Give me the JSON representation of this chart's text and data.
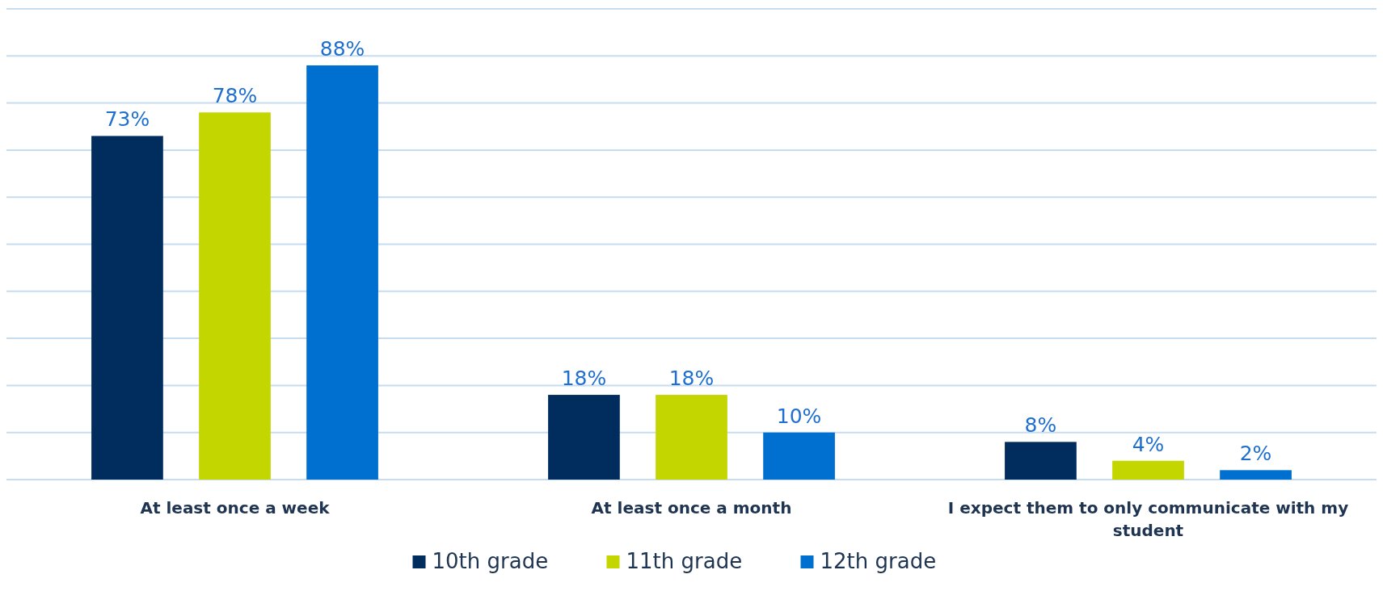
{
  "chart_data": {
    "type": "bar",
    "categories": [
      "At least once a week",
      "At least once a month",
      "I expect them to only communicate with my student"
    ],
    "series": [
      {
        "name": "10th grade",
        "color": "#002d5e",
        "values": [
          73,
          18,
          8
        ],
        "value_labels": [
          "73%",
          "18%",
          "8%"
        ]
      },
      {
        "name": "11th grade",
        "color": "#c4d600",
        "values": [
          78,
          18,
          4
        ],
        "value_labels": [
          "78%",
          "18%",
          "4%"
        ]
      },
      {
        "name": "12th grade",
        "color": "#0070d0",
        "values": [
          88,
          10,
          2
        ],
        "value_labels": [
          "88%",
          "10%",
          "2%"
        ]
      }
    ],
    "ylim": [
      0,
      100
    ],
    "yticks": [
      {
        "value": 0,
        "label": null
      },
      {
        "value": 10,
        "label": null
      },
      {
        "value": 20,
        "label": null
      },
      {
        "value": 30,
        "label": null
      },
      {
        "value": 40,
        "label": null
      },
      {
        "value": 50,
        "label": null
      },
      {
        "value": 60,
        "label": null
      },
      {
        "value": 70,
        "label": null
      },
      {
        "value": 80,
        "label": null
      },
      {
        "value": 90,
        "label": null
      },
      {
        "value": 100,
        "label": null
      }
    ],
    "tick_labels": "x",
    "grid": "y",
    "legend": "bottom"
  }
}
